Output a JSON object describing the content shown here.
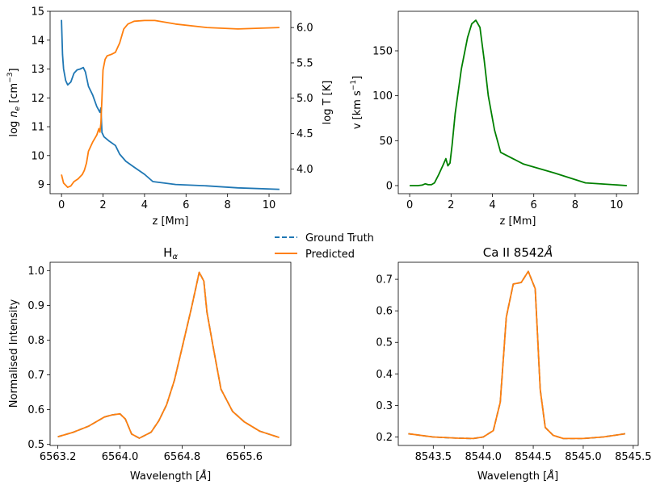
{
  "legend": {
    "items": [
      {
        "label": "Ground Truth",
        "color": "#1f77b4",
        "style": "dashed"
      },
      {
        "label": "Predicted",
        "color": "#ff7f0e",
        "style": "solid"
      }
    ]
  },
  "chart_data": [
    {
      "id": "ne_T",
      "type": "line",
      "xlabel": "z [Mm]",
      "ylabel": "log n_e [cm^-3]",
      "ylabel_right": "log T [K]",
      "xlim": [
        -0.55,
        11.05
      ],
      "ylim": [
        8.68,
        15.0
      ],
      "ylim_right": [
        3.65,
        6.23
      ],
      "xticks": [
        "0",
        "2",
        "4",
        "6",
        "8",
        "10"
      ],
      "yticks": [
        "9",
        "10",
        "11",
        "12",
        "13",
        "14",
        "15"
      ],
      "yticks_right": [
        "4.0",
        "4.5",
        "5.0",
        "5.5",
        "6.0"
      ],
      "series": [
        {
          "axis": "left",
          "color": "#1f77b4",
          "x": [
            0.0,
            0.05,
            0.1,
            0.2,
            0.3,
            0.45,
            0.6,
            0.75,
            0.9,
            1.05,
            1.15,
            1.3,
            1.5,
            1.7,
            1.85,
            1.9,
            1.95,
            2.05,
            2.3,
            2.6,
            2.8,
            3.1,
            3.5,
            4.0,
            4.4,
            5.5,
            7.0,
            8.5,
            10.5
          ],
          "values": [
            14.7,
            13.5,
            13.0,
            12.6,
            12.45,
            12.55,
            12.85,
            12.97,
            13.0,
            13.05,
            12.9,
            12.4,
            12.1,
            11.7,
            11.5,
            11.65,
            10.8,
            10.65,
            10.5,
            10.35,
            10.05,
            9.8,
            9.6,
            9.35,
            9.1,
            9.0,
            8.95,
            8.88,
            8.83
          ]
        },
        {
          "axis": "right",
          "color": "#ff7f0e",
          "x": [
            0.0,
            0.1,
            0.2,
            0.3,
            0.45,
            0.6,
            0.8,
            1.0,
            1.1,
            1.2,
            1.3,
            1.5,
            1.7,
            1.8,
            1.85,
            1.9,
            1.95,
            2.0,
            2.1,
            2.2,
            2.4,
            2.6,
            2.8,
            3.0,
            3.2,
            3.5,
            4.0,
            4.5,
            5.5,
            7.0,
            8.5,
            10.5
          ],
          "values": [
            3.92,
            3.8,
            3.77,
            3.74,
            3.76,
            3.82,
            3.86,
            3.92,
            3.98,
            4.08,
            4.25,
            4.38,
            4.48,
            4.57,
            4.52,
            4.65,
            5.0,
            5.4,
            5.55,
            5.6,
            5.62,
            5.65,
            5.78,
            5.98,
            6.05,
            6.09,
            6.1,
            6.1,
            6.05,
            6.0,
            5.98,
            6.0
          ]
        }
      ]
    },
    {
      "id": "velocity",
      "type": "line",
      "xlabel": "z [Mm]",
      "ylabel": "v [km s^-1]",
      "xlim": [
        -0.55,
        11.05
      ],
      "ylim": [
        -9,
        194
      ],
      "xticks": [
        "0",
        "2",
        "4",
        "6",
        "8",
        "10"
      ],
      "yticks": [
        "0",
        "50",
        "100",
        "150"
      ],
      "series": [
        {
          "color": "#008000",
          "x": [
            0.0,
            0.4,
            0.6,
            0.75,
            0.9,
            1.05,
            1.2,
            1.4,
            1.6,
            1.75,
            1.85,
            1.95,
            2.05,
            2.2,
            2.5,
            2.8,
            3.0,
            3.2,
            3.4,
            3.6,
            3.8,
            4.1,
            4.4,
            5.5,
            7.0,
            8.5,
            10.5
          ],
          "values": [
            0,
            0,
            0.5,
            2,
            1,
            1,
            3,
            12,
            22,
            30,
            22,
            25,
            45,
            80,
            130,
            165,
            180,
            184,
            176,
            140,
            100,
            62,
            37,
            24,
            14,
            3,
            0
          ]
        }
      ]
    },
    {
      "id": "halpha",
      "type": "line",
      "title": "H_α",
      "xlabel": "Wavelength [Å]",
      "ylabel": "Normalised Intensity",
      "xlim": [
        6563.1,
        6566.2
      ],
      "ylim": [
        0.497,
        1.024
      ],
      "xticks": [
        "6563.2",
        "6564.0",
        "6564.8",
        "6565.6"
      ],
      "yticks": [
        "0.5",
        "0.6",
        "0.7",
        "0.8",
        "0.9",
        "1.0"
      ],
      "series": [
        {
          "name": "Ground Truth",
          "color": "#1f77b4",
          "style": "dashed",
          "x": [
            6563.2,
            6563.4,
            6563.6,
            6563.8,
            6563.9,
            6564.0,
            6564.07,
            6564.15,
            6564.25,
            6564.4,
            6564.5,
            6564.6,
            6564.7,
            6564.8,
            6564.92,
            6565.02,
            6565.08,
            6565.12,
            6565.2,
            6565.3,
            6565.45,
            6565.6,
            6565.8,
            6566.05
          ],
          "values": [
            0.522,
            0.535,
            0.553,
            0.579,
            0.585,
            0.588,
            0.573,
            0.53,
            0.518,
            0.535,
            0.568,
            0.614,
            0.684,
            0.778,
            0.893,
            0.995,
            0.97,
            0.88,
            0.78,
            0.659,
            0.595,
            0.565,
            0.538,
            0.52
          ]
        },
        {
          "name": "Predicted",
          "color": "#ff7f0e",
          "style": "solid",
          "x": [
            6563.2,
            6563.4,
            6563.6,
            6563.8,
            6563.9,
            6564.0,
            6564.07,
            6564.15,
            6564.25,
            6564.4,
            6564.5,
            6564.6,
            6564.7,
            6564.8,
            6564.92,
            6565.02,
            6565.08,
            6565.12,
            6565.2,
            6565.3,
            6565.45,
            6565.6,
            6565.8,
            6566.05
          ],
          "values": [
            0.522,
            0.535,
            0.553,
            0.579,
            0.585,
            0.588,
            0.573,
            0.53,
            0.518,
            0.535,
            0.568,
            0.614,
            0.684,
            0.778,
            0.893,
            0.995,
            0.97,
            0.88,
            0.78,
            0.659,
            0.595,
            0.565,
            0.538,
            0.52
          ]
        }
      ]
    },
    {
      "id": "caii",
      "type": "line",
      "title": "Ca II 8542Å",
      "xlabel": "Wavelength [Å]",
      "xlim": [
        8543.15,
        8545.55
      ],
      "ylim": [
        0.173,
        0.754
      ],
      "xticks": [
        "8543.5",
        "8544.0",
        "8544.5",
        "8545.0",
        "8545.5"
      ],
      "yticks": [
        "0.2",
        "0.3",
        "0.4",
        "0.5",
        "0.6",
        "0.7"
      ],
      "series": [
        {
          "name": "Ground Truth",
          "color": "#1f77b4",
          "style": "dashed",
          "x": [
            8543.25,
            8543.5,
            8543.75,
            8543.9,
            8544.0,
            8544.1,
            8544.17,
            8544.23,
            8544.3,
            8544.38,
            8544.45,
            8544.52,
            8544.57,
            8544.62,
            8544.7,
            8544.8,
            8545.0,
            8545.2,
            8545.42
          ],
          "values": [
            0.21,
            0.2,
            0.196,
            0.195,
            0.2,
            0.22,
            0.31,
            0.58,
            0.685,
            0.69,
            0.725,
            0.67,
            0.35,
            0.23,
            0.205,
            0.195,
            0.195,
            0.2,
            0.21
          ]
        },
        {
          "name": "Predicted",
          "color": "#ff7f0e",
          "style": "solid",
          "x": [
            8543.25,
            8543.5,
            8543.75,
            8543.9,
            8544.0,
            8544.1,
            8544.17,
            8544.23,
            8544.3,
            8544.38,
            8544.45,
            8544.52,
            8544.57,
            8544.62,
            8544.7,
            8544.8,
            8545.0,
            8545.2,
            8545.42
          ],
          "values": [
            0.21,
            0.2,
            0.196,
            0.195,
            0.2,
            0.22,
            0.31,
            0.58,
            0.685,
            0.69,
            0.725,
            0.67,
            0.35,
            0.23,
            0.205,
            0.195,
            0.195,
            0.2,
            0.21
          ]
        }
      ]
    }
  ]
}
